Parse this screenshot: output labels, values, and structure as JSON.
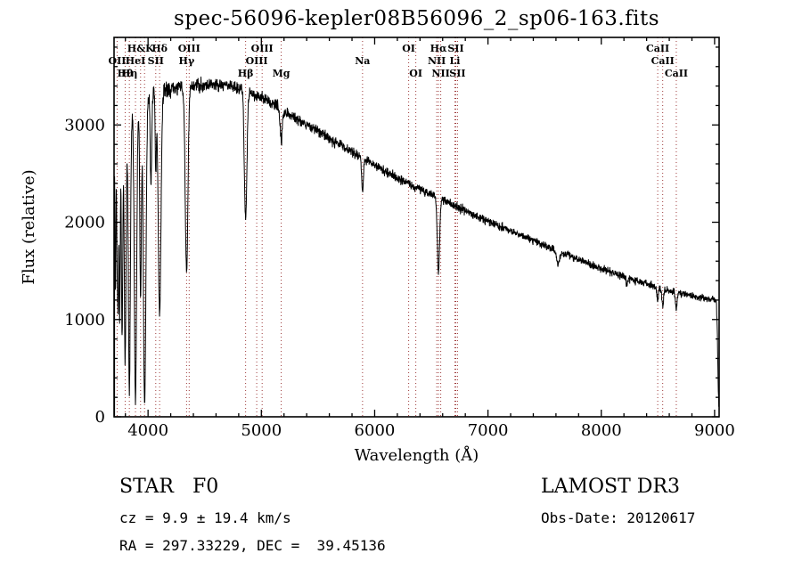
{
  "title": "spec-56096-kepler08B56096_2_sp06-163.fits",
  "chart_data": {
    "type": "line",
    "title": "spec-56096-kepler08B56096_2_sp06-163.fits",
    "xlabel": "Wavelength (Å)",
    "ylabel": "Flux (relative)",
    "xlim": [
      3700,
      9040
    ],
    "ylim": [
      0,
      3900
    ],
    "xticks": [
      4000,
      5000,
      6000,
      7000,
      8000,
      9000
    ],
    "yticks": [
      0,
      1000,
      2000,
      3000
    ],
    "x_minor_step": 200,
    "y_minor_step": 200,
    "grid": false,
    "legend": "none",
    "line_color": "#000000",
    "marker_line_color": "#9e3a3a",
    "start_wavelength": 3705,
    "end_wavelength": 9038,
    "continuum": [
      [
        3705,
        2850
      ],
      [
        3750,
        2960
      ],
      [
        3800,
        3060
      ],
      [
        3850,
        3140
      ],
      [
        3900,
        3200
      ],
      [
        3950,
        3250
      ],
      [
        4000,
        3300
      ],
      [
        4100,
        3340
      ],
      [
        4200,
        3370
      ],
      [
        4300,
        3390
      ],
      [
        4400,
        3405
      ],
      [
        4500,
        3415
      ],
      [
        4600,
        3420
      ],
      [
        4700,
        3410
      ],
      [
        4800,
        3385
      ],
      [
        4900,
        3340
      ],
      [
        5000,
        3280
      ],
      [
        5100,
        3215
      ],
      [
        5200,
        3145
      ],
      [
        5300,
        3075
      ],
      [
        5400,
        3005
      ],
      [
        5500,
        2935
      ],
      [
        5600,
        2865
      ],
      [
        5700,
        2795
      ],
      [
        5800,
        2725
      ],
      [
        5900,
        2655
      ],
      [
        6000,
        2585
      ],
      [
        6100,
        2520
      ],
      [
        6200,
        2458
      ],
      [
        6300,
        2398
      ],
      [
        6400,
        2340
      ],
      [
        6500,
        2288
      ],
      [
        6600,
        2232
      ],
      [
        6700,
        2175
      ],
      [
        6800,
        2120
      ],
      [
        6900,
        2065
      ],
      [
        7000,
        2012
      ],
      [
        7100,
        1960
      ],
      [
        7200,
        1910
      ],
      [
        7300,
        1860
      ],
      [
        7400,
        1812
      ],
      [
        7500,
        1765
      ],
      [
        7600,
        1718
      ],
      [
        7700,
        1668
      ],
      [
        7800,
        1618
      ],
      [
        7900,
        1568
      ],
      [
        8000,
        1522
      ],
      [
        8100,
        1480
      ],
      [
        8200,
        1440
      ],
      [
        8300,
        1402
      ],
      [
        8400,
        1364
      ],
      [
        8500,
        1330
      ],
      [
        8600,
        1300
      ],
      [
        8700,
        1272
      ],
      [
        8800,
        1245
      ],
      [
        8900,
        1222
      ],
      [
        9000,
        1202
      ],
      [
        9015,
        1188
      ],
      [
        9024,
        900
      ],
      [
        9031,
        360
      ],
      [
        9038,
        60
      ]
    ],
    "absorption_lines": [
      {
        "wl": 3712,
        "depth": 0.55,
        "width": 4
      },
      {
        "wl": 3727,
        "depth": 0.45,
        "width": 4
      },
      {
        "wl": 3736,
        "depth": 0.6,
        "width": 4
      },
      {
        "wl": 3750,
        "depth": 0.68,
        "width": 5
      },
      {
        "wl": 3771,
        "depth": 0.74,
        "width": 6
      },
      {
        "wl": 3798,
        "depth": 0.8,
        "width": 8
      },
      {
        "wl": 3835,
        "depth": 0.92,
        "width": 9
      },
      {
        "wl": 3889,
        "depth": 0.95,
        "width": 10
      },
      {
        "wl": 3934,
        "depth": 0.62,
        "width": 7
      },
      {
        "wl": 3970,
        "depth": 0.97,
        "width": 11
      },
      {
        "wl": 4026,
        "depth": 0.3,
        "width": 6
      },
      {
        "wl": 4068,
        "depth": 0.25,
        "width": 5
      },
      {
        "wl": 4102,
        "depth": 0.68,
        "width": 12
      },
      {
        "wl": 4340,
        "depth": 0.56,
        "width": 12
      },
      {
        "wl": 4861,
        "depth": 0.4,
        "width": 11
      },
      {
        "wl": 5175,
        "depth": 0.1,
        "width": 9
      },
      {
        "wl": 5893,
        "depth": 0.13,
        "width": 7
      },
      {
        "wl": 6563,
        "depth": 0.34,
        "width": 10
      },
      {
        "wl": 7620,
        "depth": 0.08,
        "width": 14
      },
      {
        "wl": 8227,
        "depth": 0.05,
        "width": 9
      },
      {
        "wl": 8498,
        "depth": 0.1,
        "width": 7
      },
      {
        "wl": 8542,
        "depth": 0.13,
        "width": 8
      },
      {
        "wl": 8662,
        "depth": 0.13,
        "width": 8
      }
    ],
    "spectral_markers": [
      {
        "wl": 3727,
        "label": "OII",
        "row": 2
      },
      {
        "wl": 3798,
        "label": "Hθ",
        "row": 3
      },
      {
        "wl": 3835,
        "label": "Hη",
        "row": 3
      },
      {
        "wl": 3889,
        "label": "HeI",
        "row": 2
      },
      {
        "wl": 3934,
        "label": "H&K",
        "row": 1
      },
      {
        "wl": 3969,
        "label": "",
        "row": 0
      },
      {
        "wl": 4068,
        "label": "SII",
        "row": 2
      },
      {
        "wl": 4102,
        "label": "Hδ",
        "row": 1
      },
      {
        "wl": 4340,
        "label": "Hγ",
        "row": 2
      },
      {
        "wl": 4363,
        "label": "OIII",
        "row": 1
      },
      {
        "wl": 4861,
        "label": "Hβ",
        "row": 3
      },
      {
        "wl": 4959,
        "label": "OIII",
        "row": 2
      },
      {
        "wl": 5007,
        "label": "OIII",
        "row": 1
      },
      {
        "wl": 5175,
        "label": "Mg",
        "row": 3
      },
      {
        "wl": 5893,
        "label": "Na",
        "row": 2
      },
      {
        "wl": 6300,
        "label": "OI",
        "row": 1
      },
      {
        "wl": 6363,
        "label": "OI",
        "row": 3
      },
      {
        "wl": 6548,
        "label": "NII",
        "row": 2
      },
      {
        "wl": 6563,
        "label": "Hα",
        "row": 1
      },
      {
        "wl": 6583,
        "label": "NII",
        "row": 3
      },
      {
        "wl": 6708,
        "label": "Li",
        "row": 2
      },
      {
        "wl": 6716,
        "label": "SII",
        "row": 1
      },
      {
        "wl": 6731,
        "label": "SII",
        "row": 3
      },
      {
        "wl": 8498,
        "label": "CaII",
        "row": 1
      },
      {
        "wl": 8542,
        "label": "CaII",
        "row": 2
      },
      {
        "wl": 8662,
        "label": "CaII",
        "row": 3
      }
    ]
  },
  "footer": {
    "class": "STAR   F0",
    "survey": "LAMOST DR3",
    "cz": "cz = 9.9 ± 19.4 km/s",
    "obs_date": "Obs-Date: 20120617",
    "ra_dec": "RA = 297.33229, DEC =  39.45136"
  }
}
